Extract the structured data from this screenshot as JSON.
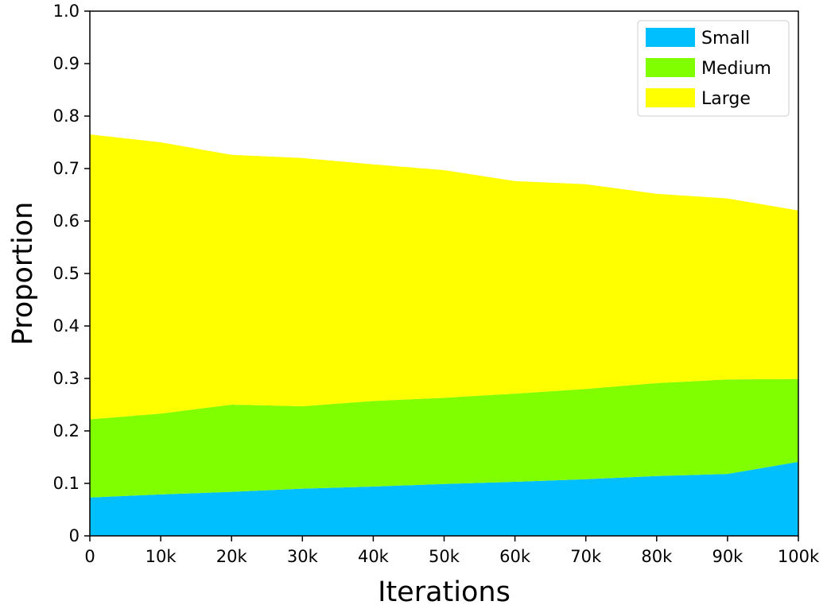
{
  "chart_data": {
    "type": "area",
    "stacked": true,
    "title": "",
    "xlabel": "Iterations",
    "ylabel": "Proportion",
    "x": [
      0,
      10000,
      20000,
      30000,
      40000,
      50000,
      60000,
      70000,
      80000,
      90000,
      100000
    ],
    "xticks": [
      "0",
      "10k",
      "20k",
      "30k",
      "40k",
      "50k",
      "60k",
      "70k",
      "80k",
      "90k",
      "100k"
    ],
    "yticks": [
      "0",
      "0.1",
      "0.2",
      "0.3",
      "0.4",
      "0.5",
      "0.6",
      "0.7",
      "0.8",
      "0.9",
      "1.0"
    ],
    "xlim": [
      0,
      100000
    ],
    "ylim": [
      0,
      1.0
    ],
    "grid": false,
    "legend_position": "top-right",
    "series": [
      {
        "name": "Small",
        "color": "#00bfff",
        "values": [
          0.073,
          0.079,
          0.084,
          0.09,
          0.094,
          0.099,
          0.103,
          0.108,
          0.114,
          0.118,
          0.141
        ]
      },
      {
        "name": "Medium",
        "color": "#7fff00",
        "values": [
          0.149,
          0.154,
          0.166,
          0.157,
          0.163,
          0.164,
          0.168,
          0.172,
          0.177,
          0.18,
          0.158
        ]
      },
      {
        "name": "Large",
        "color": "#ffff00",
        "values": [
          0.543,
          0.517,
          0.476,
          0.473,
          0.451,
          0.434,
          0.405,
          0.39,
          0.361,
          0.345,
          0.321
        ]
      }
    ]
  }
}
